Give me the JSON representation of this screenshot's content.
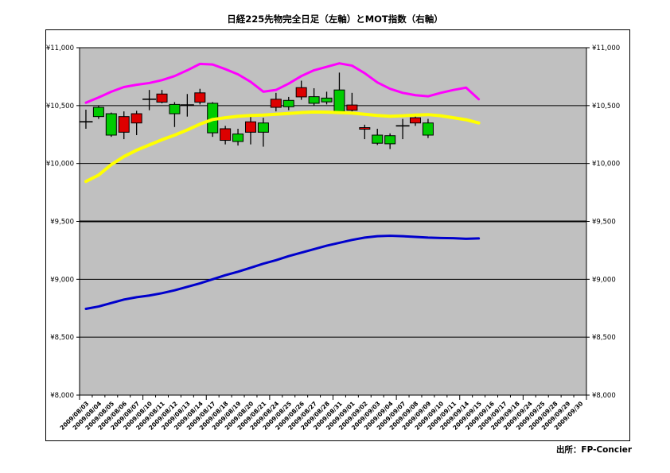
{
  "page": {
    "title": "日経225先物完全日足（左軸）とMOT指数（右軸）",
    "source_note": "出所：FP-Concier",
    "background": "#ffffff"
  },
  "chart_data": {
    "type": "candlestick",
    "title": "日経225先物完全日足（左軸）とMOT指数（右軸）",
    "plot_bg": "#c0c0c0",
    "grid": "horizontal-only",
    "legend": "none",
    "ylim": [
      8000,
      11000
    ],
    "y_ticks": [
      {
        "label": "¥8,000",
        "value": 8000,
        "bold": false
      },
      {
        "label": "¥8,500",
        "value": 8500,
        "bold": false
      },
      {
        "label": "¥9,000",
        "value": 9000,
        "bold": false
      },
      {
        "label": "¥9,500",
        "value": 9500,
        "bold": true
      },
      {
        "label": "¥10,000",
        "value": 10000,
        "bold": false
      },
      {
        "label": "¥10,500",
        "value": 10500,
        "bold": false
      },
      {
        "label": "¥11,000",
        "value": 11000,
        "bold": false
      }
    ],
    "categories": [
      "2009/08/03",
      "2009/08/04",
      "2009/08/05",
      "2009/08/06",
      "2009/08/07",
      "2009/08/10",
      "2009/08/11",
      "2009/08/12",
      "2009/08/13",
      "2009/08/14",
      "2009/08/17",
      "2009/08/18",
      "2009/08/19",
      "2009/08/20",
      "2009/08/21",
      "2009/08/24",
      "2009/08/25",
      "2009/08/26",
      "2009/08/27",
      "2009/08/28",
      "2009/08/31",
      "2009/09/01",
      "2009/09/02",
      "2009/09/03",
      "2009/09/04",
      "2009/09/07",
      "2009/09/08",
      "2009/09/09",
      "2009/09/10",
      "2009/09/11",
      "2009/09/14",
      "2009/09/15",
      "2009/09/16",
      "2009/09/17",
      "2009/09/18",
      "2009/09/24",
      "2009/09/25",
      "2009/09/28",
      "2009/09/29",
      "2009/09/30"
    ],
    "colors": {
      "up": "#dd0000",
      "down": "#00cc00",
      "doji": "#000000",
      "wick": "#000000"
    },
    "candles": [
      {
        "date": "2009/08/03",
        "open": 10360,
        "high": 10465,
        "low": 10300,
        "close": 10360,
        "color": "doji"
      },
      {
        "date": "2009/08/04",
        "open": 10485,
        "high": 10500,
        "low": 10385,
        "close": 10405,
        "color": "down"
      },
      {
        "date": "2009/08/05",
        "open": 10430,
        "high": 10440,
        "low": 10230,
        "close": 10245,
        "color": "down"
      },
      {
        "date": "2009/08/06",
        "open": 10270,
        "high": 10450,
        "low": 10210,
        "close": 10405,
        "color": "up"
      },
      {
        "date": "2009/08/07",
        "open": 10350,
        "high": 10455,
        "low": 10245,
        "close": 10430,
        "color": "up"
      },
      {
        "date": "2009/08/10",
        "open": 10555,
        "high": 10635,
        "low": 10460,
        "close": 10555,
        "color": "doji"
      },
      {
        "date": "2009/08/11",
        "open": 10530,
        "high": 10635,
        "low": 10520,
        "close": 10600,
        "color": "up"
      },
      {
        "date": "2009/08/12",
        "open": 10510,
        "high": 10530,
        "low": 10315,
        "close": 10430,
        "color": "down"
      },
      {
        "date": "2009/08/13",
        "open": 10505,
        "high": 10600,
        "low": 10405,
        "close": 10505,
        "color": "doji"
      },
      {
        "date": "2009/08/14",
        "open": 10530,
        "high": 10645,
        "low": 10510,
        "close": 10610,
        "color": "up"
      },
      {
        "date": "2009/08/17",
        "open": 10520,
        "high": 10530,
        "low": 10230,
        "close": 10265,
        "color": "down"
      },
      {
        "date": "2009/08/18",
        "open": 10200,
        "high": 10325,
        "low": 10165,
        "close": 10300,
        "color": "up"
      },
      {
        "date": "2009/08/19",
        "open": 10255,
        "high": 10300,
        "low": 10155,
        "close": 10190,
        "color": "down"
      },
      {
        "date": "2009/08/20",
        "open": 10270,
        "high": 10405,
        "low": 10165,
        "close": 10360,
        "color": "up"
      },
      {
        "date": "2009/08/21",
        "open": 10350,
        "high": 10395,
        "low": 10145,
        "close": 10270,
        "color": "down"
      },
      {
        "date": "2009/08/24",
        "open": 10485,
        "high": 10610,
        "low": 10450,
        "close": 10555,
        "color": "up"
      },
      {
        "date": "2009/08/25",
        "open": 10545,
        "high": 10575,
        "low": 10460,
        "close": 10490,
        "color": "down"
      },
      {
        "date": "2009/08/26",
        "open": 10575,
        "high": 10715,
        "low": 10550,
        "close": 10655,
        "color": "up"
      },
      {
        "date": "2009/08/27",
        "open": 10577,
        "high": 10650,
        "low": 10500,
        "close": 10520,
        "color": "down"
      },
      {
        "date": "2009/08/28",
        "open": 10565,
        "high": 10620,
        "low": 10510,
        "close": 10532,
        "color": "down"
      },
      {
        "date": "2009/08/31",
        "open": 10635,
        "high": 10785,
        "low": 10430,
        "close": 10450,
        "color": "down"
      },
      {
        "date": "2009/09/01",
        "open": 10460,
        "high": 10610,
        "low": 10450,
        "close": 10505,
        "color": "up"
      },
      {
        "date": "2009/09/02",
        "open": 10300,
        "high": 10335,
        "low": 10210,
        "close": 10310,
        "color": "up"
      },
      {
        "date": "2009/09/03",
        "open": 10245,
        "high": 10300,
        "low": 10160,
        "close": 10175,
        "color": "down"
      },
      {
        "date": "2009/09/04",
        "open": 10240,
        "high": 10260,
        "low": 10125,
        "close": 10170,
        "color": "down"
      },
      {
        "date": "2009/09/07",
        "open": 10325,
        "high": 10385,
        "low": 10210,
        "close": 10325,
        "color": "doji"
      },
      {
        "date": "2009/09/08",
        "open": 10350,
        "high": 10420,
        "low": 10325,
        "close": 10395,
        "color": "up"
      },
      {
        "date": "2009/09/09",
        "open": 10350,
        "high": 10385,
        "low": 10220,
        "close": 10245,
        "color": "down"
      }
    ],
    "series": [
      {
        "name": "line-magenta",
        "color": "#ff00ff",
        "width": 3,
        "values": [
          10525,
          10570,
          10620,
          10660,
          10680,
          10695,
          10720,
          10755,
          10805,
          10860,
          10855,
          10815,
          10770,
          10705,
          10620,
          10635,
          10690,
          10755,
          10805,
          10835,
          10865,
          10845,
          10780,
          10700,
          10645,
          10610,
          10590,
          10580,
          10610,
          10635,
          10655,
          10555,
          null,
          null,
          null,
          null,
          null,
          null,
          null,
          null
        ]
      },
      {
        "name": "line-yellow",
        "color": "#ffff00",
        "width": 4,
        "values": [
          9845,
          9900,
          9990,
          10060,
          10115,
          10160,
          10205,
          10245,
          10290,
          10340,
          10380,
          10395,
          10408,
          10415,
          10418,
          10425,
          10432,
          10440,
          10445,
          10443,
          10440,
          10435,
          10425,
          10415,
          10408,
          10412,
          10418,
          10422,
          10412,
          10395,
          10378,
          10350,
          null,
          null,
          null,
          null,
          null,
          null,
          null,
          null
        ]
      },
      {
        "name": "mot-index-blue",
        "color": "#0000cc",
        "width": 3,
        "values": [
          8745,
          8765,
          8795,
          8825,
          8845,
          8860,
          8880,
          8905,
          8935,
          8965,
          9000,
          9035,
          9065,
          9100,
          9135,
          9165,
          9200,
          9230,
          9260,
          9290,
          9315,
          9340,
          9360,
          9372,
          9376,
          9372,
          9366,
          9360,
          9357,
          9355,
          9350,
          9353,
          null,
          null,
          null,
          null,
          null,
          null,
          null,
          null
        ]
      }
    ]
  }
}
